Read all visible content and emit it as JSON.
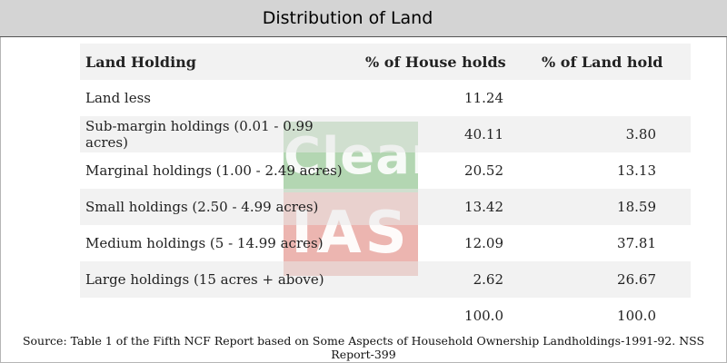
{
  "title": "Distribution of Land",
  "table": {
    "headers": [
      "Land Holding",
      "% of House holds",
      "% of Land hold"
    ],
    "rows": [
      [
        "Land less",
        "11.24",
        ""
      ],
      [
        "Sub-margin holdings (0.01 - 0.99 acres)",
        "40.11",
        "3.80"
      ],
      [
        "Marginal holdings (1.00 - 2.49 acres)",
        "20.52",
        "13.13"
      ],
      [
        "Small holdings (2.50 - 4.99 acres)",
        "13.42",
        "18.59"
      ],
      [
        "Medium holdings (5 - 14.99 acres)",
        "12.09",
        "37.81"
      ],
      [
        "Large holdings (15 acres + above)",
        "2.62",
        "26.67"
      ],
      [
        "",
        "100.0",
        "100.0"
      ]
    ]
  },
  "watermark": {
    "line1": "Clear",
    "line2": "IAS",
    "colors": [
      "#a6cfa5",
      "#e9a8a2"
    ]
  },
  "source": "Source: Table 1 of the Fifth NCF Report based on Some Aspects of Household Ownership Landholdings-1991-92. NSS Report-399"
}
